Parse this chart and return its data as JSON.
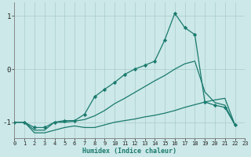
{
  "xlabel": "Humidex (Indice chaleur)",
  "xlim": [
    0,
    23
  ],
  "ylim": [
    -1.3,
    1.25
  ],
  "yticks": [
    -1,
    0,
    1
  ],
  "xticks": [
    0,
    1,
    2,
    3,
    4,
    5,
    6,
    7,
    8,
    9,
    10,
    11,
    12,
    13,
    14,
    15,
    16,
    17,
    18,
    19,
    20,
    21,
    22,
    23
  ],
  "bg_color": "#cce8e8",
  "grid_color": "#aacccc",
  "line_color": "#1a7a6e",
  "s1_x": [
    0,
    1,
    2,
    3,
    4,
    5,
    6,
    7,
    8,
    9,
    10,
    11,
    12,
    13,
    14,
    15,
    16,
    17,
    18,
    19,
    20,
    21,
    22
  ],
  "s1_y": [
    -1.0,
    -1.0,
    -1.1,
    -1.1,
    -1.0,
    -0.97,
    -0.97,
    -0.85,
    -0.52,
    -0.38,
    -0.25,
    -0.1,
    -0.0,
    0.07,
    0.15,
    0.55,
    1.05,
    0.78,
    0.65,
    -0.62,
    -0.68,
    -0.72,
    -1.05
  ],
  "s2_x": [
    0,
    1,
    2,
    3,
    4,
    5,
    6,
    7,
    8,
    9,
    10,
    11,
    12,
    13,
    14,
    15,
    16,
    17,
    18,
    19,
    20,
    21,
    22
  ],
  "s2_y": [
    -1.0,
    -1.0,
    -1.15,
    -1.15,
    -1.0,
    -1.0,
    -0.98,
    -0.95,
    -0.88,
    -0.78,
    -0.65,
    -0.55,
    -0.44,
    -0.33,
    -0.22,
    -0.12,
    0.0,
    0.1,
    0.15,
    -0.43,
    -0.63,
    -0.68,
    -1.05
  ],
  "s3_x": [
    0,
    1,
    2,
    3,
    4,
    5,
    6,
    7,
    8,
    9,
    10,
    11,
    12,
    13,
    14,
    15,
    16,
    17,
    18,
    19,
    20,
    21,
    22
  ],
  "s3_y": [
    -1.0,
    -1.0,
    -1.2,
    -1.2,
    -1.15,
    -1.1,
    -1.07,
    -1.1,
    -1.1,
    -1.05,
    -1.0,
    -0.97,
    -0.94,
    -0.9,
    -0.87,
    -0.83,
    -0.78,
    -0.72,
    -0.67,
    -0.62,
    -0.58,
    -0.55,
    -1.05
  ]
}
